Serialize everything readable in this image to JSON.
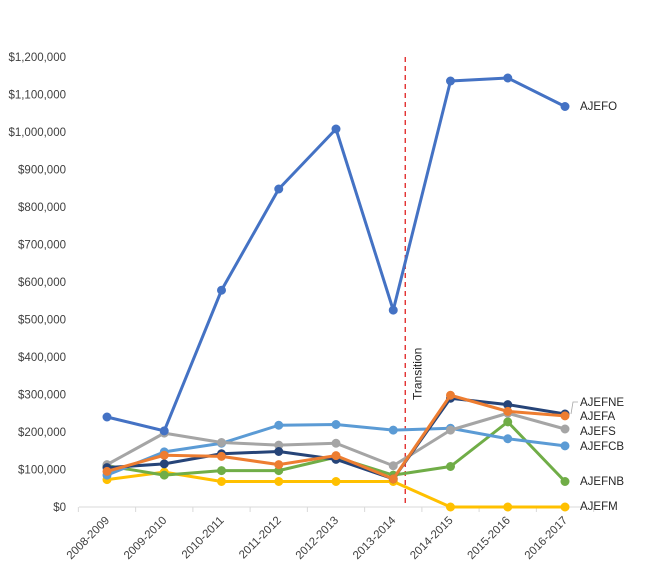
{
  "chart_data": {
    "type": "line",
    "title": "",
    "xlabel": "",
    "ylabel": "",
    "categories": [
      "2008-2009",
      "2009-2010",
      "2010-2011",
      "2011-2012",
      "2012-2013",
      "2013-2014",
      "2014-2015",
      "2015-2016",
      "2016-2017"
    ],
    "ylim": [
      0,
      1200000
    ],
    "yticks": [
      0,
      100000,
      200000,
      300000,
      400000,
      500000,
      600000,
      700000,
      800000,
      900000,
      1000000,
      1100000,
      1200000
    ],
    "ytick_labels": [
      "$0",
      "$100,000",
      "$200,000",
      "$300,000",
      "$400,000",
      "$500,000",
      "$600,000",
      "$700,000",
      "$800,000",
      "$900,000",
      "$1,000,000",
      "$1,100,000",
      "$1,200,000"
    ],
    "grid": false,
    "legend": "none (series labeled at right end of lines)",
    "annotation": {
      "label": "Transition",
      "at_category": "2013-2014",
      "style": "dashed vertical line",
      "color": "#e02020"
    },
    "series": [
      {
        "name": "AJEFO",
        "color": "#4472c4",
        "values": [
          240000,
          203000,
          578000,
          848000,
          1008000,
          525000,
          1136000,
          1144000,
          1068000
        ]
      },
      {
        "name": "AJEFNE",
        "color": "#ed7d31",
        "values": [
          95000,
          138000,
          135000,
          113000,
          137000,
          75000,
          298000,
          255000,
          243000
        ]
      },
      {
        "name": "AJEFA",
        "color": "#264478",
        "values": [
          105000,
          115000,
          142000,
          148000,
          127000,
          75000,
          290000,
          273000,
          248000
        ]
      },
      {
        "name": "AJEFS",
        "color": "#a5a5a5",
        "values": [
          113000,
          197000,
          172000,
          165000,
          170000,
          110000,
          205000,
          250000,
          208000
        ]
      },
      {
        "name": "AJEFCB",
        "color": "#5b9bd5",
        "values": [
          85000,
          147000,
          170000,
          218000,
          220000,
          205000,
          210000,
          182000,
          163000
        ]
      },
      {
        "name": "AJEFNB",
        "color": "#70ad47",
        "values": [
          110000,
          85000,
          97000,
          97000,
          133000,
          85000,
          108000,
          227000,
          68000
        ]
      },
      {
        "name": "AJEFM",
        "color": "#ffc000",
        "values": [
          73000,
          93000,
          68000,
          68000,
          68000,
          68000,
          0,
          0,
          0
        ]
      }
    ]
  }
}
